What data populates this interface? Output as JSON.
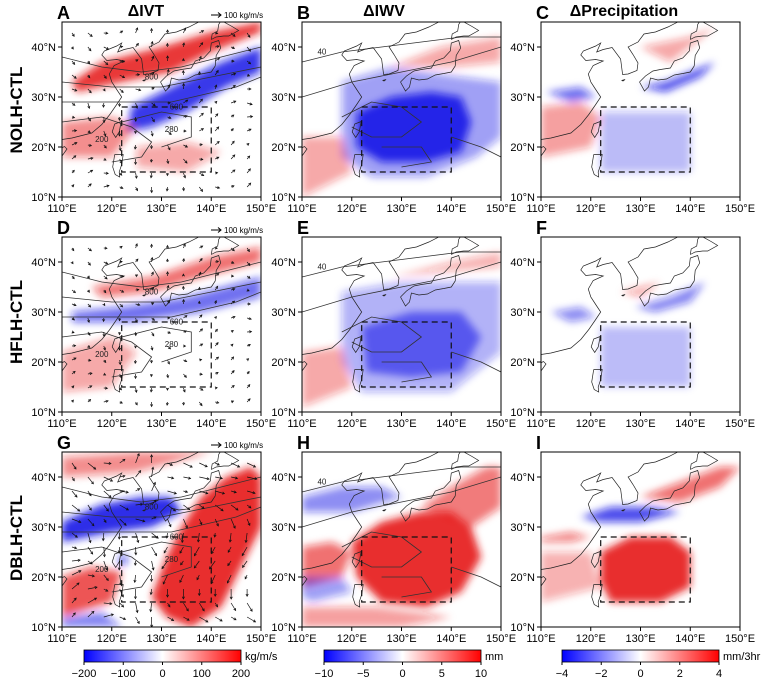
{
  "chart_data": {
    "type": "heatmap",
    "columns": [
      {
        "title": "ΔIVT"
      },
      {
        "title": "ΔIWV"
      },
      {
        "title": "ΔPrecipitation"
      }
    ],
    "rows": [
      {
        "label": "NOLH-CTL"
      },
      {
        "label": "HFLH-CTL"
      },
      {
        "label": "DBLH-CTL"
      }
    ],
    "panel_letters": [
      "A",
      "B",
      "C",
      "D",
      "E",
      "F",
      "G",
      "H",
      "I"
    ],
    "x_ticks": [
      "110°E",
      "120°E",
      "130°E",
      "140°E",
      "150°E"
    ],
    "y_ticks": [
      "10°N",
      "20°N",
      "30°N",
      "40°N"
    ],
    "xlim": [
      110,
      150
    ],
    "ylim": [
      10,
      45
    ],
    "box_region": {
      "lon": [
        122,
        140
      ],
      "lat": [
        15,
        28
      ]
    },
    "vector_reference": "100 kg/m/s",
    "contour_labels": {
      "ivt": [
        "800",
        "600",
        "200",
        "280"
      ],
      "iwv": [
        "40"
      ]
    },
    "colorbars": [
      {
        "ticks": [
          "−200",
          "−100",
          "0",
          "100",
          "200"
        ],
        "unit": "kg/m/s",
        "range": [
          -200,
          200
        ]
      },
      {
        "ticks": [
          "−10",
          "−5",
          "0",
          "5",
          "10"
        ],
        "unit": "mm",
        "range": [
          -10,
          10
        ]
      },
      {
        "ticks": [
          "−4",
          "−2",
          "0",
          "2",
          "4"
        ],
        "unit": "mm/3hr",
        "range": [
          -4,
          4
        ]
      }
    ],
    "anomaly_features": [
      {
        "panel": "A",
        "sign": "positive",
        "region": "Yellow Sea to northern Japan band",
        "strength": 0.95
      },
      {
        "panel": "A",
        "sign": "negative",
        "region": "south of Japan, 25-35N",
        "strength": 0.9
      },
      {
        "panel": "B",
        "sign": "negative",
        "region": "western North Pacific box",
        "strength": 1.0
      },
      {
        "panel": "B",
        "sign": "positive",
        "region": "Japan / northern band",
        "strength": 0.3
      },
      {
        "panel": "C",
        "sign": "negative",
        "region": "southern Japan",
        "strength": 0.8
      },
      {
        "panel": "C",
        "sign": "mixed",
        "region": "ocean",
        "strength": 0.3
      },
      {
        "panel": "D",
        "sign": "positive",
        "region": "northern band",
        "strength": 0.6
      },
      {
        "panel": "D",
        "sign": "negative",
        "region": "30N band",
        "strength": 0.6
      },
      {
        "panel": "E",
        "sign": "negative",
        "region": "western North Pacific box",
        "strength": 0.55
      },
      {
        "panel": "F",
        "sign": "negative",
        "region": "southern Japan",
        "strength": 0.5
      },
      {
        "panel": "G",
        "sign": "negative",
        "region": "East China Sea / Japan 30-35N",
        "strength": 1.0
      },
      {
        "panel": "G",
        "sign": "positive",
        "region": "east of Japan and south China",
        "strength": 1.0
      },
      {
        "panel": "H",
        "sign": "positive",
        "region": "western North Pacific box",
        "strength": 1.0
      },
      {
        "panel": "H",
        "sign": "negative",
        "region": "northern China",
        "strength": 0.4
      },
      {
        "panel": "I",
        "sign": "positive",
        "region": "western North Pacific box",
        "strength": 1.0
      },
      {
        "panel": "I",
        "sign": "negative",
        "region": "Korea / southern Japan",
        "strength": 0.8
      }
    ]
  }
}
